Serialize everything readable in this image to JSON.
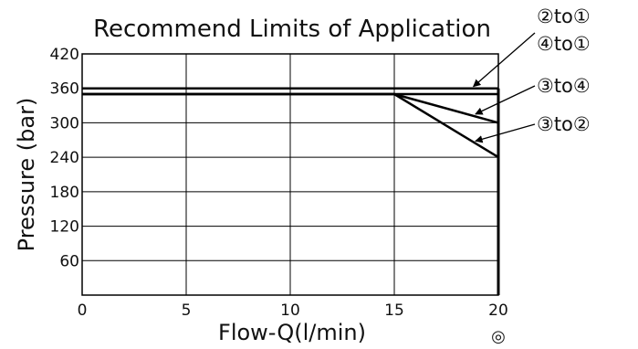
{
  "chart_data": {
    "type": "line",
    "title": "Recommend Limits of Application",
    "xlabel": "Flow-Q(l/min)",
    "ylabel": "Pressure (bar)",
    "xlim": [
      0,
      20
    ],
    "ylim": [
      0,
      420
    ],
    "xticks": [
      0,
      5,
      10,
      15,
      20
    ],
    "yticks": [
      60,
      120,
      180,
      240,
      300,
      360,
      420
    ],
    "grid": true,
    "series": [
      {
        "name": "②to①",
        "x": [
          0,
          20
        ],
        "y": [
          360,
          360
        ]
      },
      {
        "name": "④to①",
        "x": [
          0,
          20
        ],
        "y": [
          350,
          350
        ]
      },
      {
        "name": "③to④",
        "x": [
          0,
          15,
          20
        ],
        "y": [
          350,
          350,
          300
        ]
      },
      {
        "name": "③to②",
        "x": [
          0,
          15,
          20
        ],
        "y": [
          350,
          350,
          240
        ]
      }
    ],
    "annotations": [
      {
        "label": "②to①",
        "target": [
          18.8,
          360
        ]
      },
      {
        "label": "④to①",
        "target": [
          18.8,
          360
        ]
      },
      {
        "label": "③to④",
        "target": [
          18.9,
          312
        ]
      },
      {
        "label": "③to②",
        "target": [
          18.9,
          265
        ]
      }
    ],
    "footnote_symbol": "◎"
  }
}
